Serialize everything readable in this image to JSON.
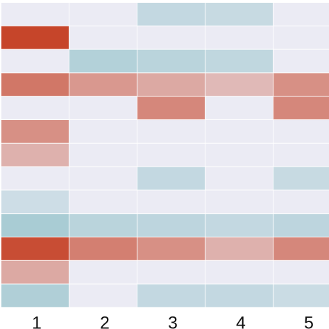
{
  "chart_data": {
    "type": "heatmap",
    "x_tick_labels": [
      "1",
      "2",
      "3",
      "4",
      "5"
    ],
    "y_tick_labels": [],
    "row_count": 13,
    "color_scale": {
      "negative": "#a9ccd4",
      "neutral": "#ebebf4",
      "positive": "#c6452a",
      "value_range": [
        -1,
        1
      ]
    },
    "values": [
      [
        0.0,
        0.0,
        -0.6,
        -0.55,
        0.0
      ],
      [
        1.0,
        0.0,
        0.0,
        0.0,
        0.0
      ],
      [
        0.0,
        -0.85,
        -0.75,
        -0.65,
        0.0
      ],
      [
        0.7,
        0.5,
        0.4,
        0.3,
        0.55
      ],
      [
        0.0,
        0.0,
        0.6,
        0.0,
        0.6
      ],
      [
        0.55,
        0.0,
        0.0,
        0.0,
        0.0
      ],
      [
        0.35,
        0.0,
        0.0,
        0.0,
        0.0
      ],
      [
        0.0,
        0.0,
        -0.6,
        0.0,
        -0.55
      ],
      [
        -0.45,
        0.0,
        0.0,
        0.0,
        0.0
      ],
      [
        -1.0,
        -0.75,
        -0.7,
        -0.6,
        -0.7
      ],
      [
        0.95,
        0.65,
        0.55,
        0.35,
        0.6
      ],
      [
        0.4,
        0.0,
        0.0,
        0.0,
        0.0
      ],
      [
        -0.9,
        0.0,
        -0.6,
        -0.6,
        -0.5
      ]
    ]
  }
}
